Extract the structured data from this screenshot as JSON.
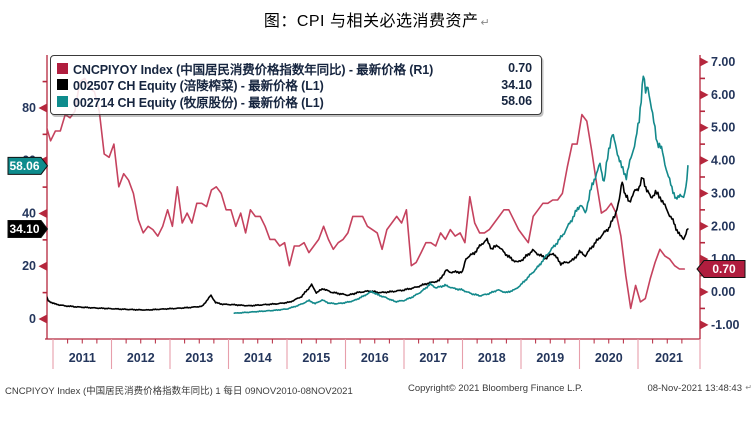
{
  "title": {
    "text": "图：CPI 与相关必选消费资产",
    "mark": "↵"
  },
  "footer": {
    "left": "CNCPIYOY Index (中国居民消费价格指数年同比) 1 每日 09NOV2010-08NOV2021",
    "copyright": "Copyright© 2021 Bloomberg Finance L.P.",
    "timestamp": "08-Nov-2021 13:48:43",
    "mark": "↵"
  },
  "legend": {
    "series": [
      {
        "swatch": "#b01d3e",
        "label": "CNCPIYOY Index (中国居民消费价格指数年同比) - 最新价格 (R1)",
        "value": "0.70"
      },
      {
        "swatch": "#000000",
        "label": "002507 CH Equity (涪陵榨菜) - 最新价格 (L1)",
        "value": "34.10"
      },
      {
        "swatch": "#0e8c8d",
        "label": "002714 CH Equity (牧原股份) - 最新价格 (L1)",
        "value": "58.06"
      }
    ]
  },
  "badges": [
    {
      "side": "left",
      "text": "58.06",
      "bg": "#0e8c8d",
      "axis": "L1",
      "v": 58.06
    },
    {
      "side": "left",
      "text": "34.10",
      "bg": "#000000",
      "axis": "L1",
      "v": 34.1
    },
    {
      "side": "right",
      "text": "0.70",
      "bg": "#b01d3e",
      "axis": "R1",
      "v": 0.7
    }
  ],
  "colors": {
    "axis": "#b5273d",
    "year_separator": "#e79fab",
    "tick_label": "#24365c"
  },
  "chart_data": {
    "type": "line",
    "title": "图：CPI 与相关必选消费资产",
    "x_range": "09NOV2010-08NOV2021",
    "x_tick_years": [
      "2011",
      "2012",
      "2013",
      "2014",
      "2015",
      "2016",
      "2017",
      "2018",
      "2019",
      "2020",
      "2021"
    ],
    "grid": false,
    "legend_position": "top-left",
    "left_axis": {
      "range": [
        0,
        80
      ],
      "ticks": [
        {
          "v": 80,
          "label": "80"
        },
        {
          "v": 60,
          "label": "60"
        },
        {
          "v": 40,
          "label": "40"
        },
        {
          "v": 20,
          "label": "20"
        },
        {
          "v": 0,
          "label": "0"
        }
      ],
      "minor": [
        90,
        70,
        50,
        30,
        10
      ]
    },
    "right_axis": {
      "range": [
        -1,
        7
      ],
      "ticks": [
        {
          "v": 7,
          "label": "7.00"
        },
        {
          "v": 6,
          "label": "6.00"
        },
        {
          "v": 5,
          "label": "5.00"
        },
        {
          "v": 4,
          "label": "4.00"
        },
        {
          "v": 3,
          "label": "3.00"
        },
        {
          "v": 2,
          "label": "2.00"
        },
        {
          "v": 1,
          "label": "1.00"
        },
        {
          "v": 0,
          "label": "0.00"
        },
        {
          "v": -1,
          "label": "-1.00"
        }
      ],
      "minor_step": 0.5
    },
    "series": [
      {
        "name": "CNCPIYOY Index (中国居民消费价格指数年同比) - 最新价格 (R1)",
        "axis": "R1",
        "color": "#c5425e",
        "last_value": 0.7,
        "start_year": 2010.875,
        "step_months": 1,
        "values": [
          5.1,
          4.6,
          4.9,
          4.9,
          5.4,
          5.3,
          5.5,
          6.4,
          6.5,
          6.2,
          6.1,
          5.5,
          4.2,
          4.1,
          4.5,
          3.2,
          3.6,
          3.4,
          3.0,
          2.2,
          1.8,
          2.0,
          1.9,
          1.7,
          2.0,
          2.5,
          2.0,
          3.2,
          2.1,
          2.4,
          2.1,
          2.7,
          2.7,
          2.6,
          3.1,
          3.2,
          3.0,
          2.5,
          2.5,
          2.0,
          2.4,
          1.8,
          2.5,
          2.3,
          2.3,
          2.0,
          1.6,
          1.6,
          1.4,
          1.5,
          0.8,
          1.4,
          1.4,
          1.5,
          1.2,
          1.4,
          1.6,
          2.0,
          1.6,
          1.3,
          1.5,
          1.6,
          1.8,
          2.3,
          2.3,
          2.3,
          2.0,
          1.9,
          1.8,
          1.3,
          1.9,
          2.1,
          2.3,
          2.1,
          2.5,
          0.8,
          0.9,
          1.2,
          1.5,
          1.5,
          1.4,
          1.8,
          1.6,
          1.9,
          1.7,
          1.8,
          1.5,
          2.9,
          2.1,
          1.8,
          1.8,
          1.9,
          2.1,
          2.3,
          2.5,
          2.5,
          2.2,
          1.9,
          1.7,
          1.5,
          2.3,
          2.5,
          2.7,
          2.7,
          2.8,
          2.8,
          3.0,
          3.8,
          4.5,
          4.5,
          5.4,
          5.2,
          4.3,
          3.3,
          2.4,
          2.5,
          2.7,
          2.4,
          1.7,
          0.5,
          -0.5,
          0.2,
          -0.3,
          -0.2,
          0.4,
          0.9,
          1.3,
          1.1,
          1.0,
          0.8,
          0.7,
          0.7
        ]
      },
      {
        "name": "002507 CH Equity (涪陵榨菜) - 最新价格 (L1)",
        "axis": "L1",
        "color": "#000000",
        "last_value": 34.1,
        "points": [
          [
            2010.88,
            9.0
          ],
          [
            2010.92,
            6.8
          ],
          [
            2011.05,
            5.6
          ],
          [
            2011.2,
            5.0
          ],
          [
            2011.4,
            4.6
          ],
          [
            2011.7,
            4.2
          ],
          [
            2012.0,
            3.9
          ],
          [
            2012.3,
            3.6
          ],
          [
            2012.6,
            3.4
          ],
          [
            2012.9,
            3.8
          ],
          [
            2013.1,
            4.0
          ],
          [
            2013.35,
            4.4
          ],
          [
            2013.55,
            4.8
          ],
          [
            2013.7,
            9.0
          ],
          [
            2013.78,
            6.2
          ],
          [
            2013.9,
            5.6
          ],
          [
            2014.1,
            5.4
          ],
          [
            2014.35,
            5.0
          ],
          [
            2014.6,
            5.4
          ],
          [
            2014.85,
            5.8
          ],
          [
            2015.05,
            6.4
          ],
          [
            2015.25,
            8.5
          ],
          [
            2015.42,
            13.0
          ],
          [
            2015.5,
            10.0
          ],
          [
            2015.62,
            11.5
          ],
          [
            2015.75,
            10.2
          ],
          [
            2015.9,
            9.6
          ],
          [
            2016.05,
            9.0
          ],
          [
            2016.2,
            10.0
          ],
          [
            2016.4,
            10.6
          ],
          [
            2016.6,
            10.0
          ],
          [
            2016.8,
            10.4
          ],
          [
            2017.0,
            11.0
          ],
          [
            2017.2,
            12.0
          ],
          [
            2017.4,
            13.5
          ],
          [
            2017.6,
            14.5
          ],
          [
            2017.72,
            18.5
          ],
          [
            2017.78,
            17.8
          ],
          [
            2018.0,
            17.8
          ],
          [
            2018.06,
            23.0
          ],
          [
            2018.2,
            25.0
          ],
          [
            2018.33,
            28.5
          ],
          [
            2018.42,
            30.0
          ],
          [
            2018.5,
            26.5
          ],
          [
            2018.6,
            28.0
          ],
          [
            2018.72,
            25.0
          ],
          [
            2018.85,
            22.5
          ],
          [
            2018.95,
            21.5
          ],
          [
            2019.05,
            23.0
          ],
          [
            2019.2,
            26.0
          ],
          [
            2019.3,
            24.5
          ],
          [
            2019.42,
            23.0
          ],
          [
            2019.55,
            25.0
          ],
          [
            2019.68,
            21.0
          ],
          [
            2019.8,
            21.5
          ],
          [
            2019.9,
            22.5
          ],
          [
            2020.0,
            25.5
          ],
          [
            2020.1,
            24.0
          ],
          [
            2020.2,
            27.0
          ],
          [
            2020.35,
            31.0
          ],
          [
            2020.5,
            34.5
          ],
          [
            2020.6,
            39.0
          ],
          [
            2020.68,
            45.0
          ],
          [
            2020.73,
            52.5
          ],
          [
            2020.78,
            47.0
          ],
          [
            2020.85,
            44.5
          ],
          [
            2020.95,
            48.5
          ],
          [
            2021.02,
            50.0
          ],
          [
            2021.08,
            53.5
          ],
          [
            2021.15,
            49.0
          ],
          [
            2021.22,
            46.0
          ],
          [
            2021.3,
            48.0
          ],
          [
            2021.4,
            45.5
          ],
          [
            2021.5,
            41.0
          ],
          [
            2021.58,
            38.0
          ],
          [
            2021.65,
            34.5
          ],
          [
            2021.72,
            31.5
          ],
          [
            2021.78,
            30.5
          ],
          [
            2021.82,
            32.5
          ],
          [
            2021.853,
            34.1
          ]
        ]
      },
      {
        "name": "002714 CH Equity (牧原股份) - 最新价格 (L1)",
        "axis": "L1",
        "color": "#13898b",
        "last_value": 58.06,
        "points": [
          [
            2014.1,
            2.2
          ],
          [
            2014.3,
            2.5
          ],
          [
            2014.55,
            2.9
          ],
          [
            2014.8,
            3.3
          ],
          [
            2015.0,
            3.8
          ],
          [
            2015.2,
            5.2
          ],
          [
            2015.38,
            7.0
          ],
          [
            2015.48,
            5.8
          ],
          [
            2015.6,
            7.2
          ],
          [
            2015.72,
            6.0
          ],
          [
            2015.85,
            5.8
          ],
          [
            2016.0,
            6.2
          ],
          [
            2016.15,
            7.0
          ],
          [
            2016.3,
            8.6
          ],
          [
            2016.45,
            10.4
          ],
          [
            2016.55,
            9.2
          ],
          [
            2016.7,
            8.0
          ],
          [
            2016.85,
            6.6
          ],
          [
            2017.0,
            7.0
          ],
          [
            2017.15,
            8.4
          ],
          [
            2017.3,
            10.4
          ],
          [
            2017.45,
            13.2
          ],
          [
            2017.55,
            11.8
          ],
          [
            2017.7,
            12.8
          ],
          [
            2017.85,
            11.6
          ],
          [
            2018.0,
            11.0
          ],
          [
            2018.15,
            9.6
          ],
          [
            2018.3,
            8.8
          ],
          [
            2018.45,
            9.6
          ],
          [
            2018.6,
            11.0
          ],
          [
            2018.75,
            10.0
          ],
          [
            2018.9,
            11.2
          ],
          [
            2019.0,
            13.0
          ],
          [
            2019.15,
            16.5
          ],
          [
            2019.3,
            20.0
          ],
          [
            2019.45,
            24.5
          ],
          [
            2019.6,
            28.5
          ],
          [
            2019.72,
            32.0
          ],
          [
            2019.85,
            37.0
          ],
          [
            2019.95,
            41.0
          ],
          [
            2020.02,
            43.5
          ],
          [
            2020.1,
            40.0
          ],
          [
            2020.18,
            48.0
          ],
          [
            2020.27,
            54.0
          ],
          [
            2020.35,
            58.5
          ],
          [
            2020.42,
            52.0
          ],
          [
            2020.5,
            64.0
          ],
          [
            2020.56,
            70.5
          ],
          [
            2020.63,
            64.5
          ],
          [
            2020.72,
            57.5
          ],
          [
            2020.8,
            54.0
          ],
          [
            2020.88,
            61.0
          ],
          [
            2020.96,
            68.0
          ],
          [
            2021.02,
            75.0
          ],
          [
            2021.09,
            93.0
          ],
          [
            2021.13,
            85.5
          ],
          [
            2021.17,
            88.5
          ],
          [
            2021.25,
            77.0
          ],
          [
            2021.33,
            67.0
          ],
          [
            2021.42,
            63.5
          ],
          [
            2021.5,
            55.0
          ],
          [
            2021.58,
            50.0
          ],
          [
            2021.65,
            45.0
          ],
          [
            2021.72,
            47.5
          ],
          [
            2021.78,
            45.5
          ],
          [
            2021.82,
            50.0
          ],
          [
            2021.853,
            58.06
          ]
        ]
      }
    ]
  }
}
